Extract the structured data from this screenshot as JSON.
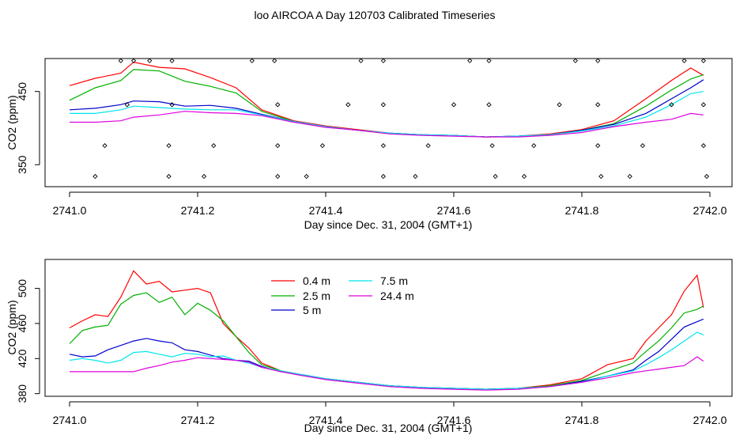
{
  "page_title": "loo AIRCOA A  Day 120703  Calibrated Timeseries",
  "colors": {
    "0.4 m": "#ff0000",
    "2.5 m": "#00b000",
    "5 m": "#0000cc",
    "7.5 m": "#00e5ee",
    "24.4 m": "#dd00dd",
    "points": "#000000"
  },
  "chart_data": [
    {
      "type": "line",
      "title": "",
      "xlabel": "Day since Dec. 31, 2004 (GMT+1)",
      "ylabel": "CO2 (ppm)",
      "xlim": [
        2741.0,
        2742.0
      ],
      "ylim": [
        320,
        495
      ],
      "x_ticks": [
        "2741.0",
        "2741.2",
        "2741.4",
        "2741.6",
        "2741.8",
        "2742.0"
      ],
      "x_tick_values": [
        2741.0,
        2741.2,
        2741.4,
        2741.6,
        2741.8,
        2742.0
      ],
      "y_ticks": [
        "350",
        "450"
      ],
      "y_tick_values": [
        350,
        450
      ],
      "legend": false,
      "grid": false,
      "x": [
        2741.0,
        2741.04,
        2741.08,
        2741.1,
        2741.14,
        2741.18,
        2741.22,
        2741.26,
        2741.3,
        2741.35,
        2741.4,
        2741.45,
        2741.5,
        2741.55,
        2741.6,
        2741.65,
        2741.7,
        2741.75,
        2741.8,
        2741.85,
        2741.9,
        2741.94,
        2741.97,
        2741.99
      ],
      "series": [
        {
          "name": "0.4 m",
          "values": [
            458,
            468,
            475,
            490,
            483,
            481,
            469,
            455,
            425,
            410,
            403,
            398,
            393,
            391,
            390,
            388,
            389,
            392,
            398,
            410,
            440,
            465,
            482,
            472
          ]
        },
        {
          "name": "2.5 m",
          "values": [
            438,
            455,
            465,
            480,
            478,
            464,
            457,
            448,
            423,
            409,
            402,
            397,
            393,
            391,
            390,
            388,
            389,
            391,
            397,
            406,
            430,
            452,
            467,
            473
          ]
        },
        {
          "name": "5 m",
          "values": [
            425,
            427,
            432,
            437,
            436,
            430,
            431,
            427,
            419,
            409,
            402,
            397,
            393,
            391,
            390,
            388,
            389,
            391,
            397,
            405,
            420,
            440,
            455,
            466
          ]
        },
        {
          "name": "7.5 m",
          "values": [
            420,
            420,
            425,
            430,
            428,
            426,
            425,
            425,
            418,
            409,
            402,
            397,
            393,
            391,
            390,
            388,
            389,
            391,
            396,
            403,
            415,
            432,
            447,
            450
          ]
        },
        {
          "name": "24.4 m",
          "values": [
            408,
            408,
            410,
            415,
            418,
            423,
            421,
            420,
            417,
            408,
            401,
            397,
            392,
            390,
            389,
            388,
            388,
            390,
            394,
            402,
            408,
            412,
            420,
            418
          ]
        }
      ],
      "point_series": {
        "name": "points",
        "x": [
          2741.08,
          2741.1,
          2741.125,
          2741.16,
          2741.285,
          2741.32,
          2741.455,
          2741.49,
          2741.625,
          2741.655,
          2741.79,
          2741.825,
          2741.96,
          2741.99,
          2741.09,
          2741.16,
          2741.325,
          2741.435,
          2741.49,
          2741.6,
          2741.655,
          2741.765,
          2741.825,
          2741.94,
          2741.99,
          2741.055,
          2741.155,
          2741.225,
          2741.325,
          2741.395,
          2741.49,
          2741.56,
          2741.66,
          2741.725,
          2741.825,
          2741.895,
          2741.99,
          2741.04,
          2741.155,
          2741.21,
          2741.325,
          2741.37,
          2741.49,
          2741.54,
          2741.665,
          2741.71,
          2741.83,
          2741.875,
          2741.995
        ],
        "y": [
          492,
          492,
          492,
          492,
          492,
          492,
          492,
          492,
          492,
          492,
          492,
          492,
          492,
          492,
          432,
          432,
          432,
          432,
          432,
          432,
          432,
          432,
          432,
          432,
          432,
          376,
          376,
          376,
          376,
          376,
          376,
          376,
          376,
          376,
          376,
          376,
          376,
          334,
          334,
          334,
          334,
          334,
          334,
          334,
          334,
          334,
          334,
          334,
          334
        ]
      }
    },
    {
      "type": "line",
      "title": "",
      "xlabel": "Day since Dec. 31, 2004 (GMT+1)",
      "ylabel": "CO2 (ppm)",
      "xlim": [
        2741.0,
        2742.0
      ],
      "ylim": [
        377,
        533
      ],
      "x_ticks": [
        "2741.0",
        "2741.2",
        "2741.4",
        "2741.6",
        "2741.8",
        "2742.0"
      ],
      "x_tick_values": [
        2741.0,
        2741.2,
        2741.4,
        2741.6,
        2741.8,
        2742.0
      ],
      "y_ticks": [
        "380",
        "420",
        "460",
        "500"
      ],
      "y_tick_values": [
        380,
        420,
        460,
        500
      ],
      "legend": true,
      "legend_placement": "top-center",
      "grid": false,
      "x": [
        2741.0,
        2741.02,
        2741.04,
        2741.06,
        2741.08,
        2741.1,
        2741.12,
        2741.14,
        2741.16,
        2741.18,
        2741.2,
        2741.22,
        2741.24,
        2741.26,
        2741.28,
        2741.3,
        2741.33,
        2741.36,
        2741.4,
        2741.45,
        2741.5,
        2741.55,
        2741.6,
        2741.65,
        2741.7,
        2741.75,
        2741.8,
        2741.84,
        2741.88,
        2741.9,
        2741.92,
        2741.94,
        2741.96,
        2741.98,
        2741.99
      ],
      "series": [
        {
          "name": "0.4 m",
          "values": [
            455,
            463,
            470,
            468,
            490,
            520,
            505,
            508,
            496,
            498,
            500,
            495,
            460,
            445,
            432,
            415,
            406,
            402,
            397,
            393,
            389,
            387,
            386,
            385,
            386,
            390,
            397,
            413,
            420,
            440,
            455,
            470,
            497,
            515,
            478
          ]
        },
        {
          "name": "2.5 m",
          "values": [
            437,
            452,
            456,
            458,
            482,
            492,
            495,
            484,
            490,
            470,
            483,
            475,
            463,
            445,
            427,
            413,
            406,
            402,
            397,
            393,
            389,
            387,
            386,
            385,
            386,
            389,
            395,
            405,
            415,
            428,
            440,
            455,
            472,
            476,
            480
          ]
        },
        {
          "name": "5 m",
          "values": [
            425,
            422,
            423,
            430,
            435,
            440,
            443,
            440,
            438,
            430,
            428,
            424,
            420,
            418,
            417,
            411,
            405,
            402,
            397,
            393,
            389,
            387,
            386,
            385,
            386,
            388,
            394,
            400,
            407,
            418,
            428,
            442,
            456,
            462,
            465
          ]
        },
        {
          "name": "7.5 m",
          "values": [
            418,
            420,
            418,
            415,
            418,
            427,
            428,
            425,
            422,
            426,
            425,
            422,
            423,
            418,
            415,
            410,
            406,
            402,
            397,
            393,
            389,
            387,
            386,
            385,
            386,
            388,
            393,
            400,
            406,
            413,
            421,
            430,
            440,
            450,
            447
          ]
        },
        {
          "name": "24.4 m",
          "values": [
            405,
            405,
            405,
            405,
            405,
            405,
            409,
            412,
            416,
            418,
            421,
            420,
            419,
            418,
            416,
            410,
            405,
            401,
            396,
            392,
            388,
            386,
            385,
            384,
            385,
            388,
            393,
            398,
            404,
            406,
            408,
            410,
            412,
            422,
            417
          ]
        }
      ]
    }
  ]
}
